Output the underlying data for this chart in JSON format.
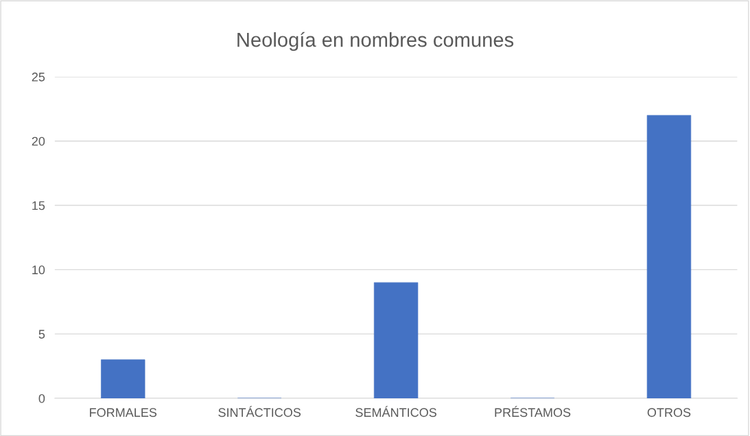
{
  "chart_data": {
    "type": "bar",
    "title": "Neología en nombres comunes",
    "categories": [
      "FORMALES",
      "SINTÁCTICOS",
      "SEMÁNTICOS",
      "PRÉSTAMOS",
      "OTROS"
    ],
    "values": [
      3,
      0,
      9,
      0,
      22
    ],
    "color": "#4472c4",
    "ylim": [
      0,
      25
    ],
    "yticks": [
      0,
      5,
      10,
      15,
      20,
      25
    ],
    "grid": "y",
    "legend": false
  }
}
